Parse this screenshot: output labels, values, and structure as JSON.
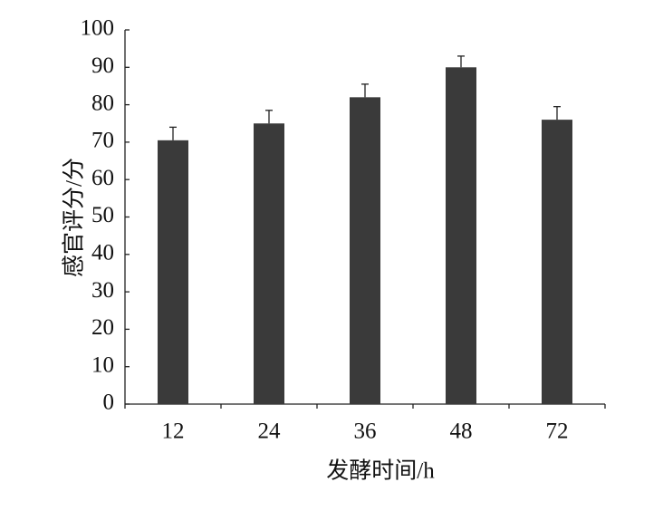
{
  "chart_data": {
    "type": "bar",
    "xlabel": "发酵时间/h",
    "ylabel": "感官评分/分",
    "categories": [
      "12",
      "24",
      "36",
      "48",
      "72"
    ],
    "values": [
      70.5,
      75,
      82,
      90,
      76
    ],
    "errors": [
      3.5,
      3.5,
      3.5,
      3,
      3.5
    ],
    "color": "#3a3a3a",
    "ylim": [
      0,
      100
    ],
    "yticks": [
      0,
      10,
      20,
      30,
      40,
      50,
      60,
      70,
      80,
      90,
      100
    ],
    "grid": false
  }
}
